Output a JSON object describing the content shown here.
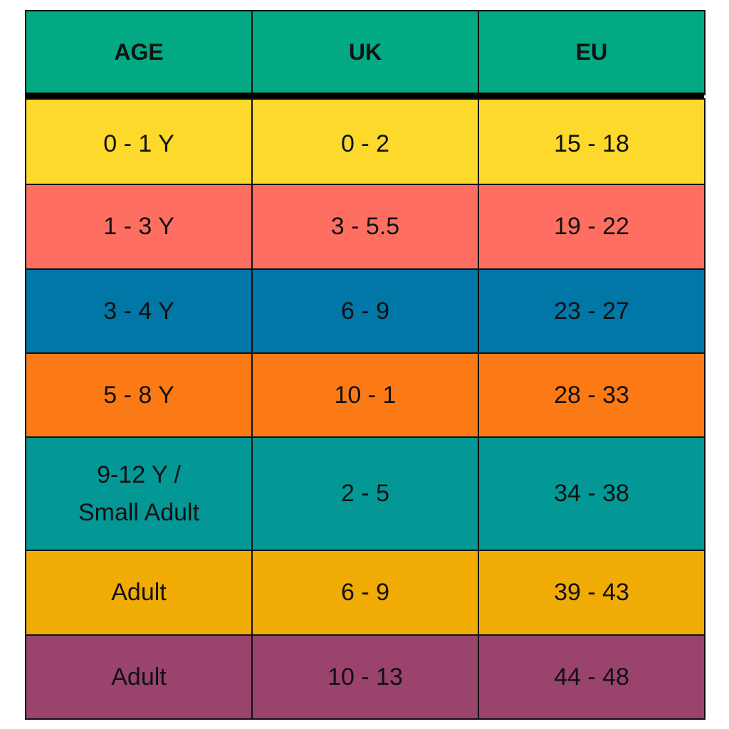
{
  "table": {
    "header": [
      "AGE",
      "UK",
      "EU"
    ],
    "rows": [
      [
        "0 - 1 Y",
        "0 - 2",
        "15 - 18"
      ],
      [
        "1 - 3 Y",
        "3 - 5.5",
        "19 - 22"
      ],
      [
        "3 - 4 Y",
        "6 - 9",
        "23 - 27"
      ],
      [
        "5 - 8 Y",
        "10 - 1",
        "28 - 33"
      ],
      [
        "9-12 Y /\nSmall Adult",
        "2 - 5",
        "34 - 38"
      ],
      [
        "Adult",
        "6 - 9",
        "39 - 43"
      ],
      [
        "Adult",
        "10 - 13",
        "44 - 48"
      ]
    ]
  }
}
